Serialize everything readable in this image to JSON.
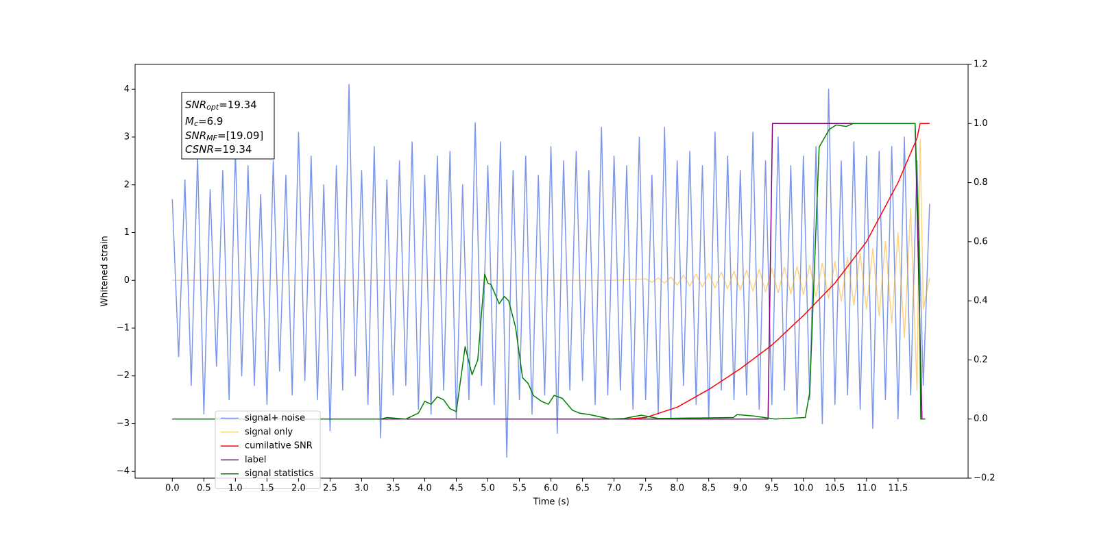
{
  "chart_data": {
    "type": "line",
    "xlabel": "Time (s)",
    "ylabel": "Whitened strain",
    "xlim": [
      -0.59,
      12.61
    ],
    "ylim": [
      -4.14,
      4.52
    ],
    "y2lim": [
      -0.2,
      1.2
    ],
    "xticks": [
      {
        "value": 0,
        "label": "0.0"
      },
      0.5,
      {
        "value": 1,
        "label": "1.0"
      },
      1.5,
      {
        "value": 2,
        "label": "2.0"
      },
      2.5,
      {
        "value": 3,
        "label": "3.0"
      },
      3.5,
      {
        "value": 4,
        "label": "4.0"
      },
      4.5,
      {
        "value": 5,
        "label": "5.0"
      },
      5.5,
      {
        "value": 6,
        "label": "6.0"
      },
      6.5,
      {
        "value": 7,
        "label": "7.0"
      },
      7.5,
      {
        "value": 8,
        "label": "8.0"
      },
      8.5,
      {
        "value": 9,
        "label": "9.0"
      },
      9.5,
      {
        "value": 10,
        "label": "10.0"
      },
      10.5,
      {
        "value": 11,
        "label": "11.0"
      },
      11.5
    ],
    "yticks": [
      {
        "value": -4,
        "label": "−4"
      },
      {
        "value": -3,
        "label": "−3"
      },
      {
        "value": -2,
        "label": "−2"
      },
      {
        "value": -1,
        "label": "−1"
      },
      0,
      1,
      2,
      3,
      4
    ],
    "y2ticks": [
      {
        "value": -0.2,
        "label": "−0.2"
      },
      {
        "value": 0,
        "label": "0.0"
      },
      0.2,
      0.4,
      0.6,
      0.8,
      {
        "value": 1,
        "label": "1.0"
      },
      1.2
    ],
    "grid": false,
    "legend_loc": "lower left",
    "annotation": [
      {
        "base": "SNR",
        "sub": "opt",
        "rest": "=19.34"
      },
      {
        "base": "M",
        "sub": "c",
        "rest": "=6.9"
      },
      {
        "base": "SNR",
        "sub": "MF",
        "rest": "=[19.09]"
      },
      {
        "base": "CSNR",
        "rest": "=19.34"
      }
    ],
    "series": [
      {
        "name": "signal+ noise",
        "color": "#4169e1",
        "alpha": 0.7,
        "axis": "y",
        "x": [
          0,
          0.1,
          0.2,
          0.3,
          0.4,
          0.5,
          0.6,
          0.7,
          0.8,
          0.9,
          1,
          1.1,
          1.2,
          1.3,
          1.4,
          1.5,
          1.6,
          1.7,
          1.8,
          1.9,
          2,
          2.1,
          2.2,
          2.3,
          2.4,
          2.5,
          2.6,
          2.7,
          2.8,
          2.9,
          3,
          3.1,
          3.2,
          3.3,
          3.4,
          3.5,
          3.6,
          3.7,
          3.8,
          3.9,
          4,
          4.1,
          4.2,
          4.3,
          4.4,
          4.5,
          4.6,
          4.7,
          4.8,
          4.9,
          5,
          5.1,
          5.2,
          5.3,
          5.4,
          5.5,
          5.6,
          5.7,
          5.8,
          5.9,
          6,
          6.1,
          6.2,
          6.3,
          6.4,
          6.5,
          6.6,
          6.7,
          6.8,
          6.9,
          7,
          7.1,
          7.2,
          7.3,
          7.4,
          7.5,
          7.6,
          7.7,
          7.8,
          7.9,
          8,
          8.1,
          8.2,
          8.3,
          8.4,
          8.5,
          8.6,
          8.7,
          8.8,
          8.9,
          9,
          9.1,
          9.2,
          9.3,
          9.4,
          9.5,
          9.6,
          9.7,
          9.8,
          9.9,
          10,
          10.1,
          10.2,
          10.3,
          10.4,
          10.5,
          10.6,
          10.7,
          10.8,
          10.9,
          11,
          11.1,
          11.2,
          11.3,
          11.4,
          11.5,
          11.6,
          11.7,
          11.8,
          11.9,
          12
        ],
        "values": [
          1.7,
          -1.6,
          2.1,
          -2.2,
          2.6,
          -2.8,
          1.9,
          -1.8,
          2.3,
          -2.5,
          2.7,
          -2.0,
          2.4,
          -2.2,
          1.8,
          -2.6,
          2.5,
          -1.9,
          2.2,
          -2.4,
          3.1,
          -2.1,
          2.6,
          -2.5,
          2.0,
          -3.15,
          2.4,
          -2.3,
          4.1,
          -2.0,
          2.3,
          -2.6,
          2.8,
          -3.3,
          2.1,
          -2.4,
          2.5,
          -2.2,
          2.9,
          -2.7,
          2.2,
          -2.8,
          2.6,
          -2.3,
          2.7,
          -2.9,
          2.0,
          -2.5,
          3.3,
          -2.2,
          2.4,
          -2.6,
          2.9,
          -3.7,
          2.3,
          -2.5,
          2.6,
          -2.8,
          2.2,
          -2.4,
          2.8,
          -3.2,
          2.5,
          -2.3,
          2.7,
          -2.1,
          2.3,
          -2.6,
          3.2,
          -2.4,
          2.6,
          -2.3,
          2.4,
          -2.7,
          3.0,
          -2.5,
          2.2,
          -2.8,
          3.2,
          -2.9,
          2.5,
          -2.2,
          2.7,
          -2.6,
          2.4,
          -2.9,
          3.1,
          -2.3,
          2.6,
          -2.5,
          2.3,
          -2.4,
          3.1,
          -2.7,
          2.5,
          -2.6,
          3.0,
          -2.3,
          2.4,
          -2.8,
          2.6,
          -2.5,
          2.8,
          -3.0,
          4.0,
          -2.6,
          2.5,
          -2.4,
          2.9,
          -2.7,
          2.6,
          -3.1,
          2.7,
          -2.5,
          2.8,
          -2.9,
          3.0,
          -2.4,
          2.5,
          -2.2,
          1.6
        ]
      },
      {
        "name": "signal only",
        "color": "#ffa500",
        "alpha": 0.5,
        "axis": "y",
        "x": [
          0,
          7,
          7.5,
          7.6,
          7.7,
          7.8,
          7.9,
          8,
          8.1,
          8.2,
          8.3,
          8.4,
          8.5,
          8.6,
          8.7,
          8.8,
          8.9,
          9,
          9.1,
          9.2,
          9.3,
          9.4,
          9.5,
          9.6,
          9.7,
          9.8,
          9.9,
          10,
          10.1,
          10.2,
          10.3,
          10.4,
          10.5,
          10.6,
          10.7,
          10.8,
          10.9,
          11,
          11.1,
          11.2,
          11.3,
          11.4,
          11.5,
          11.6,
          11.7,
          11.8,
          11.85,
          11.9,
          12
        ],
        "values": [
          0,
          0,
          0.03,
          -0.04,
          0.05,
          -0.06,
          0.07,
          -0.1,
          0.11,
          -0.12,
          0.13,
          -0.14,
          0.15,
          -0.16,
          0.17,
          -0.18,
          0.19,
          -0.2,
          0.21,
          -0.22,
          0.23,
          -0.24,
          0.25,
          -0.26,
          0.27,
          -0.28,
          0.29,
          -0.3,
          0.32,
          -0.34,
          0.36,
          -0.38,
          0.4,
          -0.44,
          0.48,
          -0.52,
          0.56,
          -0.6,
          0.67,
          -0.74,
          0.82,
          -0.9,
          1.0,
          -1.2,
          1.5,
          -2.3,
          2.95,
          -0.6,
          0.05
        ]
      },
      {
        "name": "cumilative SNR",
        "color": "#ff0000",
        "axis": "y2",
        "x": [
          0,
          7.2,
          7.5,
          8,
          8.5,
          9,
          9.5,
          10,
          10.5,
          11,
          11.5,
          11.8,
          11.85,
          12
        ],
        "values": [
          0,
          0,
          0.005,
          0.04,
          0.1,
          0.17,
          0.25,
          0.35,
          0.46,
          0.6,
          0.8,
          0.95,
          1.0,
          1.0
        ]
      },
      {
        "name": "label",
        "color": "#800080",
        "axis": "y2",
        "x": [
          0,
          9.44,
          9.51,
          11.77,
          11.88,
          11.93
        ],
        "values": [
          0,
          0,
          1.0,
          1.0,
          0,
          0
        ]
      },
      {
        "name": "signal statistics",
        "color": "#008000",
        "axis": "y2",
        "x": [
          0,
          3.3,
          3.4,
          3.7,
          3.9,
          4,
          4.1,
          4.2,
          4.3,
          4.4,
          4.5,
          4.64,
          4.75,
          4.84,
          4.95,
          5,
          5.05,
          5.18,
          5.26,
          5.33,
          5.44,
          5.55,
          5.64,
          5.72,
          5.85,
          5.96,
          6.05,
          6.18,
          6.34,
          6.45,
          6.61,
          6.72,
          6.94,
          7.16,
          7.43,
          7.7,
          8.89,
          8.95,
          9.22,
          9.55,
          10.03,
          10.1,
          10.2,
          10.25,
          10.41,
          10.52,
          10.68,
          10.79,
          11.77,
          11.83,
          11.86,
          11.93
        ],
        "values": [
          0,
          0,
          0.005,
          0,
          0.02,
          0.06,
          0.05,
          0.075,
          0.065,
          0.035,
          0.025,
          0.245,
          0.15,
          0.2,
          0.49,
          0.46,
          0.455,
          0.39,
          0.415,
          0.4,
          0.31,
          0.14,
          0.12,
          0.08,
          0.06,
          0.05,
          0.08,
          0.07,
          0.03,
          0.02,
          0.015,
          0.01,
          0,
          0.002,
          0.013,
          0.002,
          0.005,
          0.015,
          0.01,
          0,
          0.005,
          0.09,
          0.65,
          0.92,
          0.98,
          0.995,
          0.99,
          1.0,
          1.0,
          0.6,
          0,
          0
        ]
      }
    ]
  }
}
